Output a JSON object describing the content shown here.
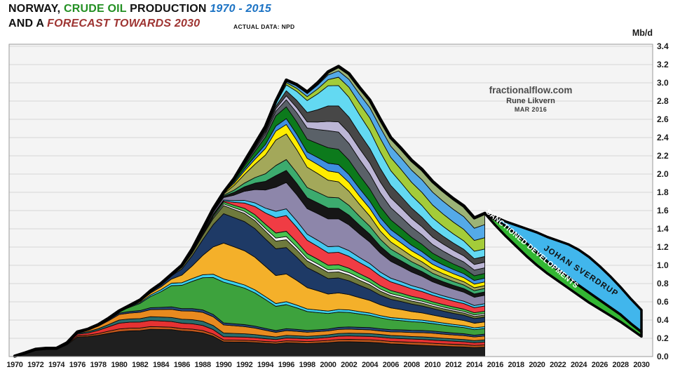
{
  "header": {
    "line1": [
      {
        "text": "NORWAY, ",
        "color": "#111111",
        "italic": false
      },
      {
        "text": "CRUDE OIL ",
        "color": "#239023",
        "italic": false
      },
      {
        "text": "PRODUCTION ",
        "color": "#111111",
        "italic": false
      },
      {
        "text": "1970 - 2015",
        "color": "#1c73c4",
        "italic": true
      }
    ],
    "line2": [
      {
        "text": "AND A ",
        "color": "#111111",
        "italic": false
      },
      {
        "text": "FORECAST TOWARDS 2030",
        "color": "#9e3432",
        "italic": true
      }
    ],
    "note": "ACTUAL DATA: NPD"
  },
  "watermark": {
    "line1": "fractionalflow.com",
    "line2": "Rune Likvern",
    "line3": "MAR 2016"
  },
  "axis": {
    "unit": "Mb/d",
    "y_ticks": [
      "0.0",
      "0.2",
      "0.4",
      "0.6",
      "0.8",
      "1.0",
      "1.2",
      "1.4",
      "1.6",
      "1.8",
      "2.0",
      "2.2",
      "2.4",
      "2.6",
      "2.8",
      "3.0",
      "3.2",
      "3.4"
    ],
    "x_ticks": [
      1970,
      1972,
      1974,
      1976,
      1978,
      1980,
      1982,
      1984,
      1986,
      1988,
      1990,
      1992,
      1994,
      1996,
      1998,
      2000,
      2002,
      2004,
      2006,
      2008,
      2010,
      2012,
      2014,
      2016,
      2018,
      2020,
      2022,
      2024,
      2026,
      2028,
      2030
    ]
  },
  "chart_data": {
    "type": "area",
    "title": "NORWAY, CRUDE OIL PRODUCTION 1970 - 2015 AND A FORECAST TOWARDS 2030",
    "subtitle": "ACTUAL DATA: NPD",
    "xlabel": "",
    "ylabel": "Mb/d",
    "x_range": [
      1970,
      2030
    ],
    "ylim": [
      0,
      3.4
    ],
    "grid": "horizontal, every 0.2",
    "legend_position": "none (labels drawn on forecast bands)",
    "years": [
      1970,
      1971,
      1972,
      1973,
      1974,
      1975,
      1976,
      1977,
      1978,
      1979,
      1980,
      1981,
      1982,
      1983,
      1984,
      1985,
      1986,
      1987,
      1988,
      1989,
      1990,
      1991,
      1992,
      1993,
      1994,
      1995,
      1996,
      1997,
      1998,
      1999,
      2000,
      2001,
      2002,
      2003,
      2004,
      2005,
      2006,
      2007,
      2008,
      2009,
      2010,
      2011,
      2012,
      2013,
      2014,
      2015
    ],
    "total_production_mbd": [
      0.005,
      0.04,
      0.08,
      0.09,
      0.09,
      0.15,
      0.27,
      0.3,
      0.35,
      0.42,
      0.5,
      0.56,
      0.62,
      0.72,
      0.8,
      0.9,
      1.0,
      1.18,
      1.4,
      1.62,
      1.8,
      1.95,
      2.14,
      2.33,
      2.52,
      2.8,
      3.03,
      2.98,
      2.9,
      3.0,
      3.12,
      3.18,
      3.1,
      2.95,
      2.81,
      2.6,
      2.4,
      2.28,
      2.15,
      2.05,
      1.92,
      1.82,
      1.73,
      1.65,
      1.52,
      1.57
    ],
    "stack_note": "historic production is stacked by field; colors approximate the many thin field bands; shares interpolated between anchor years and normalized",
    "share_anchor_years": [
      1970,
      1975,
      1980,
      1985,
      1990,
      1995,
      2000,
      2005,
      2010,
      2015
    ],
    "layers": [
      {
        "name": "field-black",
        "color": "#1f1f1f",
        "shares": [
          1,
          0.85,
          0.55,
          0.33,
          0.09,
          0.05,
          0.045,
          0.05,
          0.05,
          0.05
        ]
      },
      {
        "name": "field-chocolate",
        "color": "#c2561b",
        "shares": [
          0,
          0.05,
          0.06,
          0.03,
          0.012,
          0.007,
          0.007,
          0.009,
          0.012,
          0.012
        ]
      },
      {
        "name": "field-red",
        "color": "#e63232",
        "shares": [
          0,
          0.05,
          0.13,
          0.07,
          0.02,
          0.01,
          0.01,
          0.012,
          0.015,
          0.015
        ]
      },
      {
        "name": "field-teal",
        "color": "#2a6d6d",
        "shares": [
          0,
          0.03,
          0.07,
          0.05,
          0.022,
          0.01,
          0.008,
          0.01,
          0.012,
          0.012
        ]
      },
      {
        "name": "field-orange",
        "color": "#e88a1f",
        "shares": [
          0,
          0.02,
          0.12,
          0.1,
          0.05,
          0.018,
          0.013,
          0.013,
          0.02,
          0.02
        ]
      },
      {
        "name": "field-navy-thin",
        "color": "#27497c",
        "shares": [
          0,
          0,
          0.03,
          0.03,
          0.012,
          0.007,
          0.006,
          0.008,
          0.01,
          0.01
        ]
      },
      {
        "name": "field-green-big",
        "color": "#3da23d",
        "shares": [
          0,
          0,
          0.04,
          0.26,
          0.25,
          0.095,
          0.05,
          0.04,
          0.035,
          0.03
        ]
      },
      {
        "name": "field-cyan",
        "color": "#3cd2ee",
        "shares": [
          0,
          0,
          0.01,
          0.03,
          0.02,
          0.011,
          0.008,
          0.008,
          0.01,
          0.01
        ]
      },
      {
        "name": "field-gold",
        "color": "#f4b02a",
        "shares": [
          0,
          0,
          0,
          0.05,
          0.22,
          0.11,
          0.055,
          0.04,
          0.03,
          0.025
        ]
      },
      {
        "name": "field-navy-big",
        "color": "#1e3a66",
        "shares": [
          0,
          0,
          0,
          0.04,
          0.18,
          0.105,
          0.05,
          0.035,
          0.03,
          0.025
        ]
      },
      {
        "name": "field-olive",
        "color": "#6f7a3d",
        "shares": [
          0,
          0,
          0,
          0.01,
          0.05,
          0.03,
          0.02,
          0.015,
          0.012,
          0.012
        ]
      },
      {
        "name": "field-white",
        "color": "#f7f7f7",
        "shares": [
          0,
          0,
          0,
          0.004,
          0.01,
          0.012,
          0.008,
          0.008,
          0.008,
          0.008
        ]
      },
      {
        "name": "field-green2",
        "color": "#49c24f",
        "shares": [
          0,
          0,
          0,
          0.004,
          0.012,
          0.02,
          0.015,
          0.012,
          0.012,
          0.012
        ]
      },
      {
        "name": "field-red2",
        "color": "#f03c44",
        "shares": [
          0,
          0,
          0,
          0,
          0.006,
          0.06,
          0.04,
          0.035,
          0.03,
          0.028
        ]
      },
      {
        "name": "field-cyan2",
        "color": "#45c8f0",
        "shares": [
          0,
          0,
          0,
          0,
          0.006,
          0.025,
          0.02,
          0.015,
          0.013,
          0.012
        ]
      },
      {
        "name": "field-purple",
        "color": "#8d86aa",
        "shares": [
          0,
          0,
          0,
          0,
          0.015,
          0.095,
          0.09,
          0.07,
          0.05,
          0.045
        ]
      },
      {
        "name": "field-black2",
        "color": "#161616",
        "shares": [
          0,
          0,
          0,
          0,
          0.008,
          0.045,
          0.035,
          0.025,
          0.02,
          0.018
        ]
      },
      {
        "name": "field-seagreen",
        "color": "#3cab6e",
        "shares": [
          0,
          0,
          0,
          0,
          0.006,
          0.04,
          0.035,
          0.025,
          0.02,
          0.018
        ]
      },
      {
        "name": "field-khaki",
        "color": "#a3a85a",
        "shares": [
          0,
          0,
          0,
          0,
          0.008,
          0.1,
          0.055,
          0.03,
          0.02,
          0.015
        ]
      },
      {
        "name": "field-yellow",
        "color": "#ffec00",
        "shares": [
          0,
          0,
          0,
          0,
          0.006,
          0.035,
          0.03,
          0.025,
          0.022,
          0.02
        ]
      },
      {
        "name": "field-blue2",
        "color": "#3f8fe0",
        "shares": [
          0,
          0,
          0,
          0,
          0.004,
          0.02,
          0.025,
          0.025,
          0.022,
          0.02
        ]
      },
      {
        "name": "field-darkgreen",
        "color": "#0c7a1c",
        "shares": [
          0,
          0,
          0,
          0,
          0,
          0.04,
          0.05,
          0.04,
          0.03,
          0.025
        ]
      },
      {
        "name": "field-slategray",
        "color": "#5a6168",
        "shares": [
          0,
          0,
          0,
          0,
          0,
          0.018,
          0.055,
          0.05,
          0.04,
          0.03
        ]
      },
      {
        "name": "field-lavender",
        "color": "#bcb6d6",
        "shares": [
          0,
          0,
          0,
          0,
          0,
          0.01,
          0.03,
          0.04,
          0.035,
          0.03
        ]
      },
      {
        "name": "field-darkgray",
        "color": "#474747",
        "shares": [
          0,
          0,
          0,
          0,
          0,
          0.01,
          0.05,
          0.05,
          0.04,
          0.03
        ]
      },
      {
        "name": "field-cyan-big",
        "color": "#63d9f2",
        "shares": [
          0,
          0,
          0,
          0,
          0,
          0.01,
          0.065,
          0.06,
          0.05,
          0.04
        ]
      },
      {
        "name": "field-yellowgreen",
        "color": "#a4cc39",
        "shares": [
          0,
          0,
          0,
          0,
          0,
          0.005,
          0.02,
          0.05,
          0.06,
          0.06
        ]
      },
      {
        "name": "field-skyblue",
        "color": "#54aae8",
        "shares": [
          0,
          0,
          0,
          0,
          0,
          0.005,
          0.015,
          0.04,
          0.06,
          0.07
        ]
      },
      {
        "name": "field-sage",
        "color": "#9cb377",
        "shares": [
          0,
          0,
          0,
          0,
          0,
          0,
          0.01,
          0.03,
          0.05,
          0.06
        ]
      }
    ],
    "forecast": {
      "years": [
        2015,
        2016,
        2017,
        2018,
        2019,
        2020,
        2021,
        2022,
        2023,
        2024,
        2025,
        2026,
        2027,
        2028,
        2029,
        2030
      ],
      "sanctioned_bottom_mbd": [
        1.57,
        1.44,
        1.32,
        1.21,
        1.1,
        1.0,
        0.91,
        0.83,
        0.75,
        0.67,
        0.59,
        0.52,
        0.45,
        0.38,
        0.3,
        0.22
      ],
      "sanctioned_top_mbd": [
        1.57,
        1.5,
        1.43,
        1.34,
        1.24,
        1.14,
        1.04,
        0.95,
        0.87,
        0.78,
        0.7,
        0.62,
        0.54,
        0.46,
        0.36,
        0.27
      ],
      "johan_sverdrup_top_mbd": [
        1.57,
        1.53,
        1.48,
        1.44,
        1.4,
        1.36,
        1.31,
        1.27,
        1.23,
        1.17,
        1.09,
        0.99,
        0.88,
        0.76,
        0.63,
        0.51
      ],
      "labels": {
        "sanctioned": "SANCTIONED DEVELOPMENTS",
        "johan_sverdrup": "JOHAN SVERDRUP"
      },
      "colors": {
        "sanctioned_green": "#33b733",
        "johan_sverdrup_blue": "#41b6ec"
      }
    },
    "colors": {
      "plot_background": "#f4f4f4",
      "gridline": "#d6d6d6",
      "frame": "#9a9a9a",
      "envelope_outline": "#000000",
      "tick_label": "#1a1a1a"
    }
  }
}
